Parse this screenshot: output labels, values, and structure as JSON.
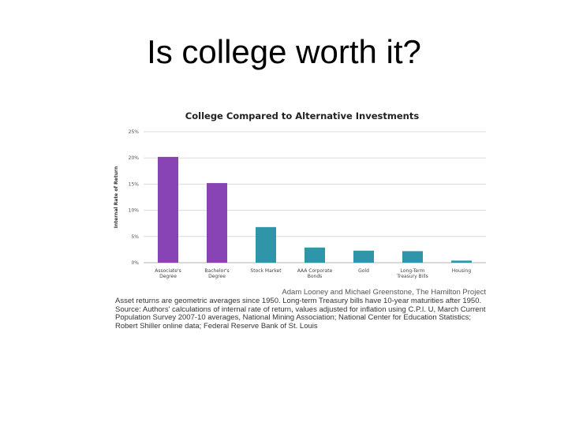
{
  "slide": {
    "title": "Is college worth it?"
  },
  "chart_data": {
    "type": "bar",
    "title": "College Compared to Alternative Investments",
    "ylabel": "Internal Rate of Return",
    "xlabel": "",
    "ylim": [
      0,
      25
    ],
    "yticks": [
      0,
      5,
      10,
      15,
      20,
      25
    ],
    "ytick_labels": [
      "0%",
      "5%",
      "10%",
      "15%",
      "20%",
      "25%"
    ],
    "grid": true,
    "categories": [
      [
        "Associate's",
        "Degree"
      ],
      [
        "Bachelor's",
        "Degree"
      ],
      [
        "Stock Market"
      ],
      [
        "AAA Corporate",
        "Bonds"
      ],
      [
        "Gold"
      ],
      [
        "Long-Term",
        "Treasury Bills"
      ],
      [
        "Housing"
      ]
    ],
    "values": [
      20.2,
      15.2,
      6.8,
      2.9,
      2.3,
      2.2,
      0.4
    ],
    "bar_colors": [
      "#8843b5",
      "#8843b5",
      "#2f95a8",
      "#2f95a8",
      "#2f95a8",
      "#2f95a8",
      "#2f95a8"
    ]
  },
  "attribution": "Adam Looney and Michael Greenstone, The Hamilton Project",
  "footnote": "Asset returns are geometric averages since 1950. Long-term Treasury bills have 10-year maturities after 1950. Source: Authors' calculations of internal rate of return, values adjusted for inflation using C.P.I. U, March Current Population Survey 2007-10 averages, National Mining Association; National Center for Education Statistics; Robert Shiller online data; Federal Reserve Bank of St. Louis"
}
